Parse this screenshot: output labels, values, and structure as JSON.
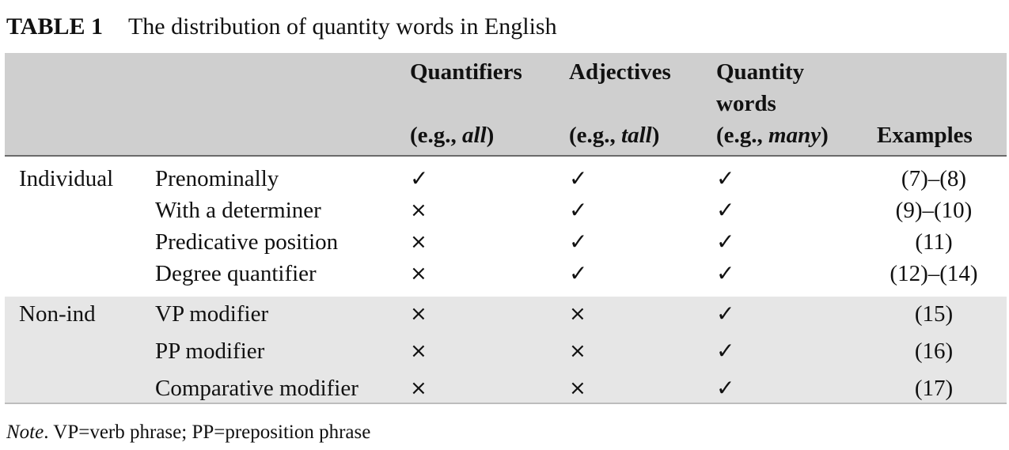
{
  "caption": {
    "label": "TABLE 1",
    "title": "The distribution of quantity words in English"
  },
  "header": {
    "quantifiers": {
      "name": "Quantifiers",
      "eg_prefix": "(e.g., ",
      "eg_word": "all",
      "eg_suffix": ")"
    },
    "adjectives": {
      "name": "Adjectives",
      "eg_prefix": "(e.g., ",
      "eg_word": "tall",
      "eg_suffix": ")"
    },
    "quantity_words": {
      "name_line1": "Quantity",
      "name_line2": "words",
      "eg_prefix": "(e.g., ",
      "eg_word": "many",
      "eg_suffix": ")"
    },
    "examples": "Examples"
  },
  "groups": [
    {
      "name": "Individual",
      "rows": [
        {
          "context": "Prenominally",
          "quantifiers": "✓",
          "adjectives": "✓",
          "quantity_words": "✓",
          "examples": "(7)–(8)"
        },
        {
          "context": "With a determiner",
          "quantifiers": "×",
          "adjectives": "✓",
          "quantity_words": "✓",
          "examples": "(9)–(10)"
        },
        {
          "context": "Predicative position",
          "quantifiers": "×",
          "adjectives": "✓",
          "quantity_words": "✓",
          "examples": "(11)"
        },
        {
          "context": "Degree quantifier",
          "quantifiers": "×",
          "adjectives": "✓",
          "quantity_words": "✓",
          "examples": "(12)–(14)"
        }
      ]
    },
    {
      "name": "Non-ind",
      "rows": [
        {
          "context": "VP modifier",
          "quantifiers": "×",
          "adjectives": "×",
          "quantity_words": "✓",
          "examples": "(15)"
        },
        {
          "context": "PP modifier",
          "quantifiers": "×",
          "adjectives": "×",
          "quantity_words": "✓",
          "examples": "(16)"
        },
        {
          "context": "Comparative modifier",
          "quantifiers": "×",
          "adjectives": "×",
          "quantity_words": "✓",
          "examples": "(17)"
        }
      ]
    }
  ],
  "note": {
    "label": "Note",
    "text": ". VP=verb phrase; PP=preposition phrase"
  }
}
